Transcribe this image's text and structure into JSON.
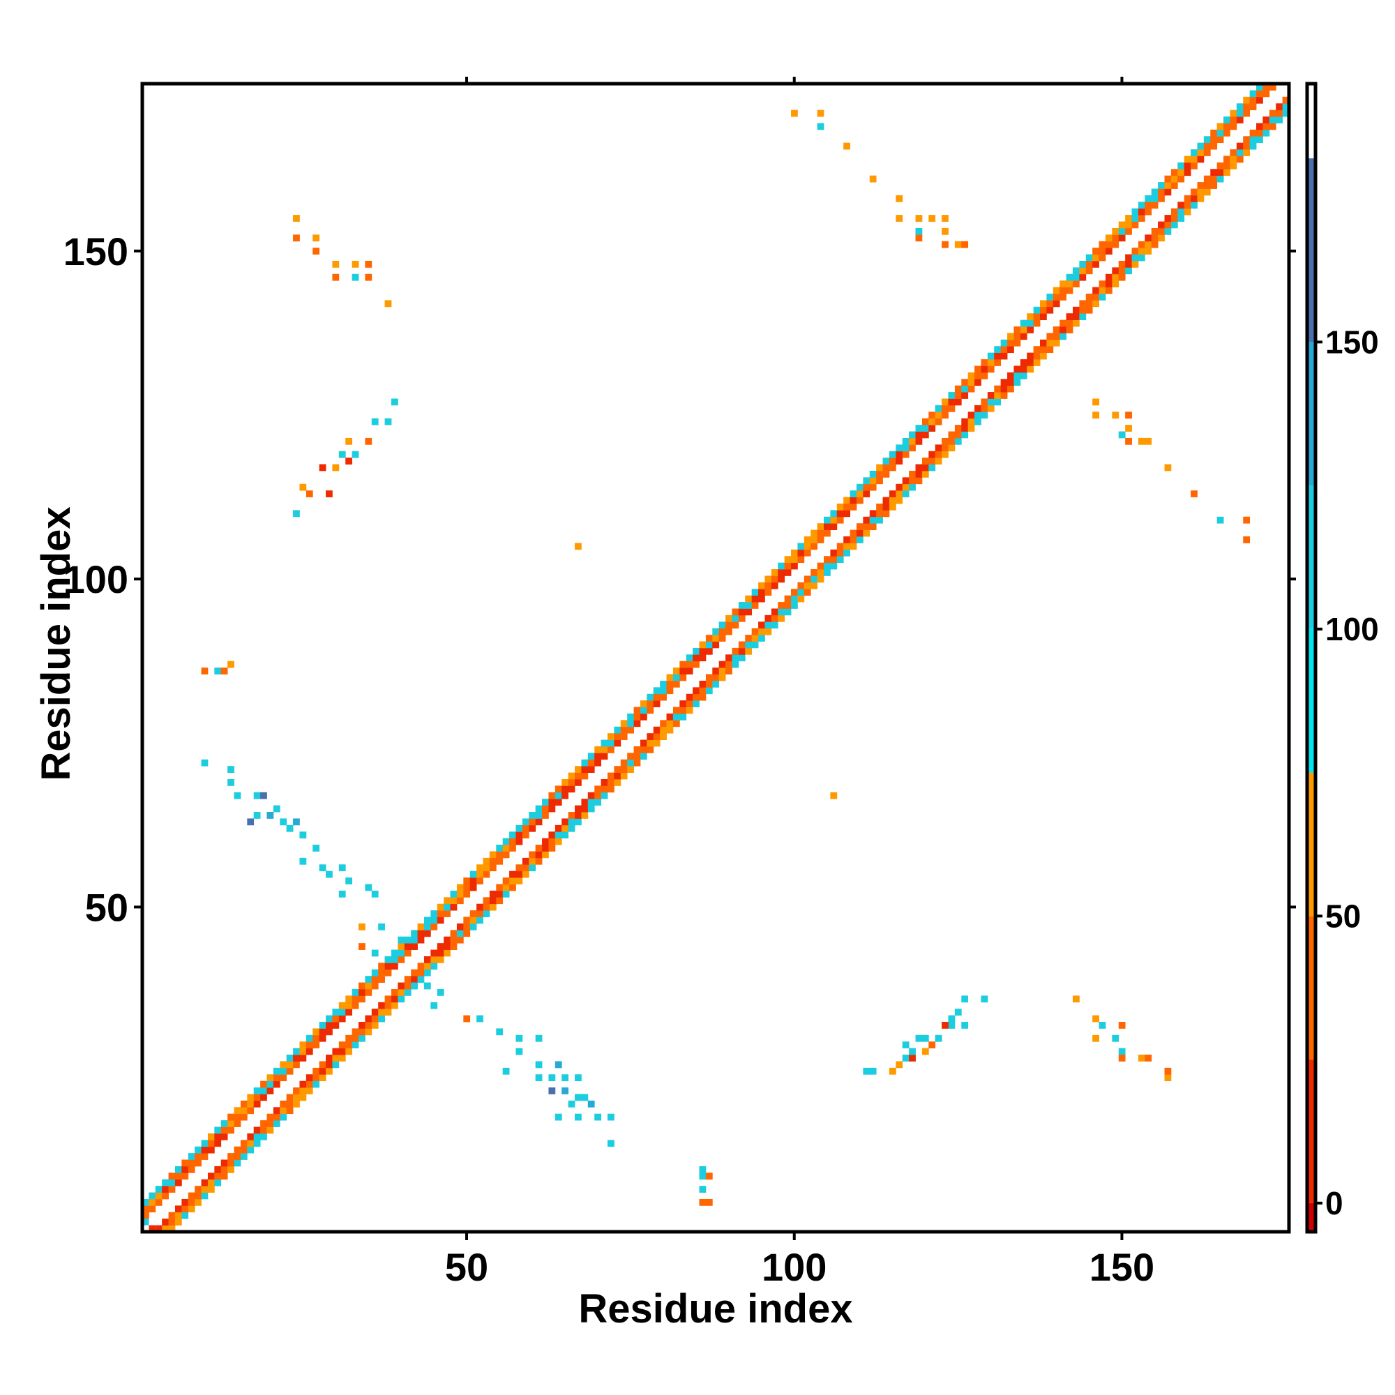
{
  "chart_data": {
    "type": "heatmap",
    "title": "",
    "xlabel": "Residue index",
    "ylabel": "Residue index",
    "xlim": [
      0.5,
      175.5
    ],
    "ylim": [
      0.5,
      175.5
    ],
    "x_ticks": [
      50,
      100,
      150
    ],
    "y_ticks": [
      50,
      100,
      150
    ],
    "x_tick_labels": [
      "50",
      "100",
      "150"
    ],
    "y_tick_labels": [
      "50",
      "100",
      "150"
    ],
    "legend": "right colorbar",
    "colorbar": {
      "range": [
        -5,
        195
      ],
      "ticks": [
        0,
        50,
        100,
        150
      ],
      "tick_labels": [
        "0",
        "50",
        "100",
        "150"
      ],
      "bands": [
        {
          "from": -5,
          "to": 0,
          "color": "#d10000"
        },
        {
          "from": 0,
          "to": 25,
          "color": "#ee2a00"
        },
        {
          "from": 25,
          "to": 50,
          "color": "#ff6600"
        },
        {
          "from": 50,
          "to": 75,
          "color": "#ff9900"
        },
        {
          "from": 75,
          "to": 100,
          "color": "#00e5ee"
        },
        {
          "from": 100,
          "to": 125,
          "color": "#1ccde0"
        },
        {
          "from": 125,
          "to": 150,
          "color": "#28a8d4"
        },
        {
          "from": 150,
          "to": 182,
          "color": "#4a6fae"
        },
        {
          "from": 182,
          "to": 195,
          "color": "#ffffff"
        }
      ]
    },
    "diagonal_band": {
      "offsets": [
        -4,
        -3,
        -2,
        2,
        3,
        4
      ],
      "from": 1,
      "to": 175
    },
    "off_diagonal_cells": [
      [
        24,
        155,
        56
      ],
      [
        24,
        152,
        28
      ],
      [
        27,
        152,
        56
      ],
      [
        27,
        150,
        28
      ],
      [
        30,
        148,
        56
      ],
      [
        33,
        148,
        56
      ],
      [
        30,
        146,
        28
      ],
      [
        33,
        146,
        110
      ],
      [
        35,
        146,
        28
      ],
      [
        35,
        148,
        28
      ],
      [
        38,
        142,
        56
      ],
      [
        39,
        127,
        110
      ],
      [
        38,
        124,
        110
      ],
      [
        36,
        124,
        110
      ],
      [
        35,
        121,
        28
      ],
      [
        32,
        121,
        56
      ],
      [
        32,
        118,
        20
      ],
      [
        30,
        117,
        56
      ],
      [
        28,
        117,
        20
      ],
      [
        25,
        114,
        56
      ],
      [
        26,
        113,
        28
      ],
      [
        29,
        113,
        20
      ],
      [
        31,
        119,
        120
      ],
      [
        33,
        119,
        120
      ],
      [
        24,
        110,
        110
      ],
      [
        10,
        86,
        28
      ],
      [
        12,
        86,
        110
      ],
      [
        13,
        86,
        28
      ],
      [
        14,
        87,
        56
      ],
      [
        10,
        72,
        110
      ],
      [
        14,
        71,
        110
      ],
      [
        14,
        69,
        110
      ],
      [
        15,
        67,
        110
      ],
      [
        18,
        67,
        120
      ],
      [
        19,
        67,
        150
      ],
      [
        21,
        65,
        110
      ],
      [
        22,
        63,
        120
      ],
      [
        23,
        62,
        110
      ],
      [
        24,
        63,
        140
      ],
      [
        25,
        61,
        110
      ],
      [
        27,
        59,
        110
      ],
      [
        25,
        57,
        110
      ],
      [
        28,
        56,
        110
      ],
      [
        31,
        56,
        110
      ],
      [
        29,
        55,
        110
      ],
      [
        32,
        54,
        110
      ],
      [
        35,
        53,
        110
      ],
      [
        31,
        52,
        110
      ],
      [
        36,
        52,
        110
      ],
      [
        17,
        63,
        150
      ],
      [
        18,
        64,
        110
      ],
      [
        20,
        64,
        140
      ],
      [
        34,
        47,
        56
      ],
      [
        37,
        47,
        110
      ],
      [
        34,
        44,
        28
      ],
      [
        36,
        43,
        110
      ],
      [
        38,
        42,
        110
      ],
      [
        40,
        45,
        110
      ],
      [
        42,
        38,
        110
      ],
      [
        44,
        38,
        110
      ],
      [
        45,
        35,
        110
      ],
      [
        46,
        37,
        110
      ],
      [
        50,
        33,
        28
      ],
      [
        52,
        33,
        110
      ],
      [
        55,
        31,
        110
      ],
      [
        58,
        30,
        110
      ],
      [
        61,
        30,
        110
      ],
      [
        58,
        28,
        110
      ],
      [
        61,
        26,
        110
      ],
      [
        64,
        26,
        140
      ],
      [
        56,
        25,
        110
      ],
      [
        61,
        24,
        110
      ],
      [
        63,
        24,
        110
      ],
      [
        65,
        24,
        110
      ],
      [
        67,
        24,
        110
      ],
      [
        63,
        22,
        150
      ],
      [
        65,
        22,
        140
      ],
      [
        67,
        21,
        110
      ],
      [
        68,
        21,
        110
      ],
      [
        66,
        20,
        110
      ],
      [
        69,
        20,
        140
      ],
      [
        64,
        18,
        110
      ],
      [
        67,
        18,
        110
      ],
      [
        70,
        18,
        110
      ],
      [
        72,
        18,
        110
      ],
      [
        72,
        14,
        110
      ],
      [
        67,
        105,
        56
      ],
      [
        106,
        67,
        56
      ],
      [
        86,
        5,
        28
      ],
      [
        87,
        5,
        28
      ],
      [
        86,
        7,
        110
      ],
      [
        86,
        9,
        110
      ],
      [
        87,
        9,
        28
      ],
      [
        86,
        10,
        110
      ],
      [
        100,
        171,
        56
      ],
      [
        104,
        171,
        56
      ],
      [
        104,
        169,
        110
      ],
      [
        108,
        166,
        56
      ],
      [
        112,
        161,
        56
      ],
      [
        116,
        158,
        56
      ],
      [
        116,
        155,
        56
      ],
      [
        119,
        155,
        56
      ],
      [
        121,
        155,
        56
      ],
      [
        123,
        155,
        56
      ],
      [
        123,
        153,
        56
      ],
      [
        119,
        152,
        28
      ],
      [
        119,
        153,
        110
      ],
      [
        123,
        151,
        28
      ],
      [
        125,
        151,
        56
      ],
      [
        126,
        151,
        28
      ],
      [
        146,
        127,
        56
      ],
      [
        146,
        125,
        56
      ],
      [
        149,
        125,
        56
      ],
      [
        151,
        125,
        28
      ],
      [
        150,
        122,
        110
      ],
      [
        151,
        123,
        56
      ],
      [
        151,
        121,
        28
      ],
      [
        153,
        121,
        56
      ],
      [
        154,
        121,
        56
      ],
      [
        157,
        117,
        56
      ],
      [
        161,
        113,
        28
      ],
      [
        165,
        109,
        110
      ],
      [
        169,
        109,
        28
      ],
      [
        169,
        106,
        28
      ],
      [
        111,
        25,
        110
      ],
      [
        112,
        25,
        110
      ],
      [
        115,
        25,
        56
      ],
      [
        116,
        26,
        56
      ],
      [
        117,
        27,
        110
      ],
      [
        118,
        27,
        20
      ],
      [
        118,
        28,
        110
      ],
      [
        120,
        28,
        56
      ],
      [
        117,
        29,
        110
      ],
      [
        121,
        29,
        28
      ],
      [
        120,
        30,
        110
      ],
      [
        119,
        30,
        110
      ],
      [
        122,
        30,
        110
      ],
      [
        124,
        32,
        110
      ],
      [
        124,
        33,
        110
      ],
      [
        123,
        32,
        20
      ],
      [
        126,
        32,
        110
      ],
      [
        125,
        34,
        110
      ],
      [
        126,
        36,
        110
      ],
      [
        129,
        36,
        110
      ],
      [
        143,
        36,
        56
      ],
      [
        146,
        33,
        56
      ],
      [
        147,
        32,
        110
      ],
      [
        150,
        32,
        28
      ],
      [
        146,
        30,
        56
      ],
      [
        149,
        30,
        110
      ],
      [
        150,
        28,
        110
      ],
      [
        150,
        27,
        28
      ],
      [
        153,
        27,
        56
      ],
      [
        154,
        27,
        28
      ],
      [
        157,
        24,
        56
      ],
      [
        157,
        25,
        28
      ]
    ]
  }
}
